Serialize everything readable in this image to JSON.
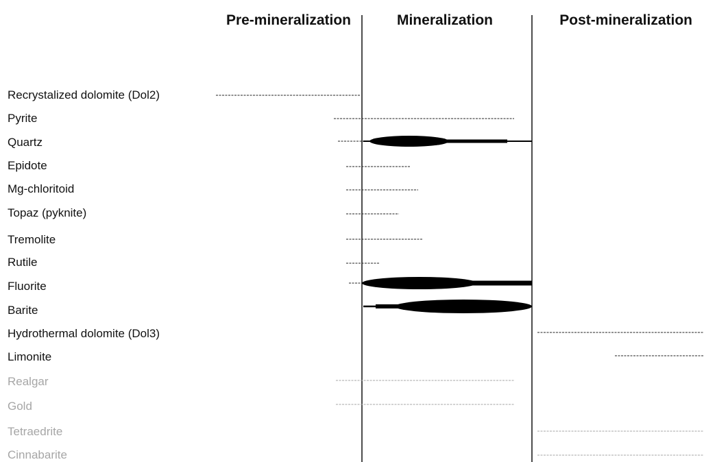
{
  "headers": {
    "pre": "Pre-mineralization",
    "mid": "Mineralization",
    "post": "Post-mineralization"
  },
  "colors": {
    "text": "#111111",
    "muted": "#a6a6a6",
    "line": "#111111"
  },
  "minerals": [
    {
      "name": "Recrystalized dolomite (Dol2)",
      "muted": false
    },
    {
      "name": "Pyrite",
      "muted": false
    },
    {
      "name": "Quartz",
      "muted": false
    },
    {
      "name": "Epidote",
      "muted": false
    },
    {
      "name": "Mg-chloritoid",
      "muted": false
    },
    {
      "name": "Topaz (pyknite)",
      "muted": false
    },
    {
      "name": "Tremolite",
      "muted": false
    },
    {
      "name": "Rutile",
      "muted": false
    },
    {
      "name": "Fluorite",
      "muted": false
    },
    {
      "name": "Barite",
      "muted": false
    },
    {
      "name": "Hydrothermal dolomite (Dol3)",
      "muted": false
    },
    {
      "name": "Limonite",
      "muted": false
    },
    {
      "name": "Realgar",
      "muted": true
    },
    {
      "name": "Gold",
      "muted": true
    },
    {
      "name": "Tetraedrite",
      "muted": true
    },
    {
      "name": "Cinnabarite",
      "muted": true
    }
  ]
}
